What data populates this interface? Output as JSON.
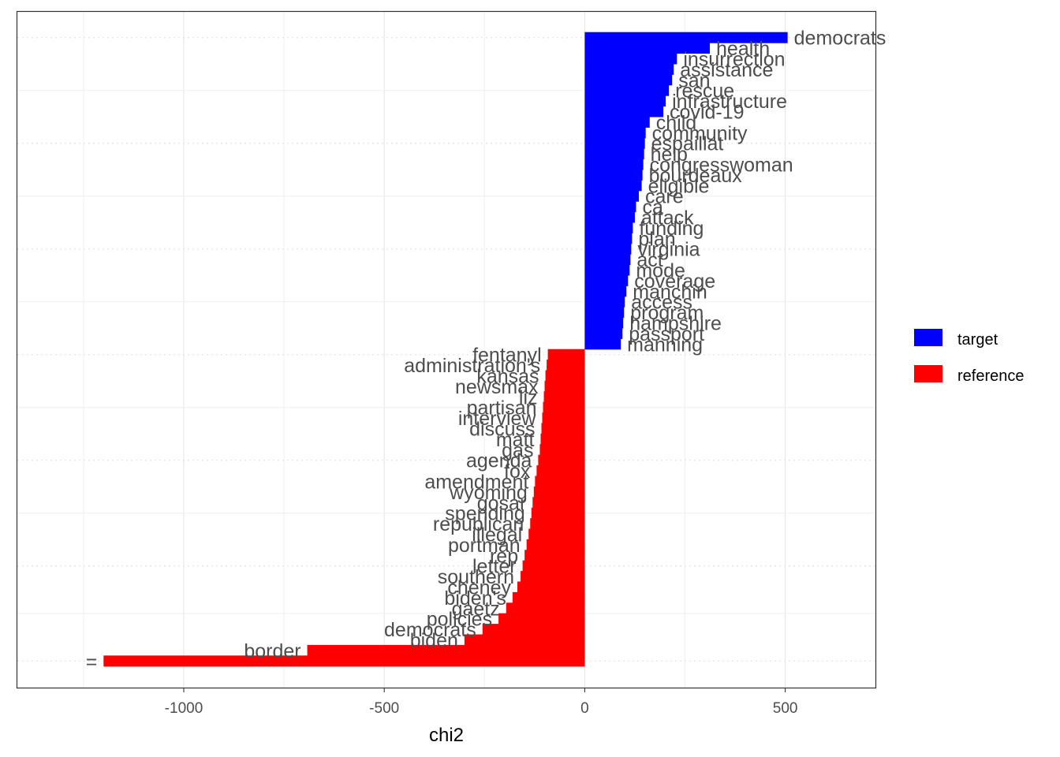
{
  "chart_data": {
    "type": "bar",
    "orientation": "horizontal",
    "xlabel": "chi2",
    "ylabel": "",
    "xlim": [
      -1415,
      725
    ],
    "x_ticks": [
      -1000,
      -500,
      0,
      500
    ],
    "x_tick_labels": [
      "-1000",
      "-500",
      "0",
      "500"
    ],
    "grid": true,
    "legend_position": "right",
    "legend": [
      {
        "name": "target",
        "color": "#0000ff"
      },
      {
        "name": "reference",
        "color": "#ff0000"
      }
    ],
    "series": [
      {
        "name": "target",
        "color": "#0000ff",
        "categories": [
          "democrats",
          "health",
          "insurrection",
          "assistance",
          "san",
          "rescue",
          "infrastructure",
          "covid-19",
          "child",
          "community",
          "espaillat",
          "help",
          "congresswoman",
          "bourdeaux",
          "eligible",
          "care",
          "ca",
          "attack",
          "funding",
          "plan",
          "virginia",
          "act",
          "mode",
          "coverage",
          "manchin",
          "access",
          "program",
          "hampshire",
          "passport",
          "manning"
        ],
        "values": [
          506,
          312,
          230,
          222,
          218,
          210,
          202,
          196,
          162,
          152,
          150,
          148,
          146,
          144,
          142,
          135,
          128,
          125,
          120,
          118,
          116,
          114,
          112,
          108,
          104,
          100,
          98,
          96,
          94,
          90
        ]
      },
      {
        "name": "reference",
        "color": "#ff0000",
        "categories": [
          "fentanyl",
          "administration's",
          "kansas",
          "newsmax",
          "liz",
          "partisan",
          "interview",
          "discuss",
          "matt",
          "gas",
          "agenda",
          "fox",
          "amendment",
          "wyoming",
          "gosar",
          "spending",
          "republican",
          "illegal",
          "portman",
          "rep",
          "letter",
          "southern",
          "cheney",
          "biden's",
          "gaetz",
          "policies",
          "democrats",
          "biden",
          "border",
          "="
        ],
        "values": [
          -92,
          -95,
          -98,
          -100,
          -102,
          -104,
          -106,
          -108,
          -110,
          -112,
          -116,
          -120,
          -124,
          -127,
          -130,
          -133,
          -136,
          -140,
          -145,
          -150,
          -155,
          -160,
          -168,
          -180,
          -196,
          -215,
          -255,
          -300,
          -692,
          -1200
        ]
      }
    ]
  }
}
